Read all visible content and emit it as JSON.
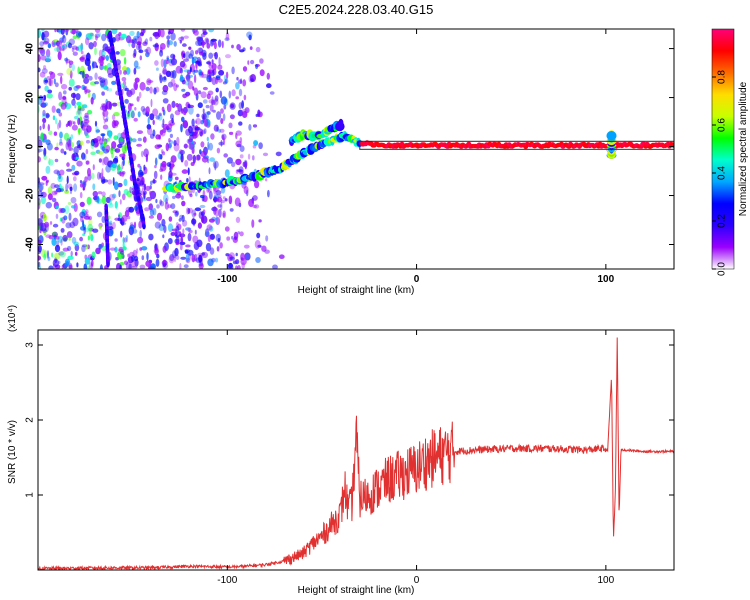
{
  "title": "C2E5.2024.228.03.40.G15",
  "colorbar": {
    "label": "Normalized spectral amplitude",
    "range": [
      0,
      1
    ],
    "ticks": [
      "0.0",
      "0.2",
      "0.4",
      "0.6",
      "0.8"
    ],
    "tick_values": [
      0.0,
      0.2,
      0.4,
      0.6,
      0.8
    ],
    "stops": [
      "#ffffff",
      "#9a00ff",
      "#2a00ff",
      "#0000ff",
      "#00a8ff",
      "#00ffcc",
      "#00ff00",
      "#c8ff00",
      "#ffdd00",
      "#ff6a00",
      "#ff0000",
      "#ff0078"
    ]
  },
  "chart_data": [
    {
      "type": "heatmap",
      "xlabel": "Height of straight line (km)",
      "ylabel": "Frequency (Hz)",
      "xlim": [
        -200,
        136
      ],
      "ylim": [
        -50,
        48
      ],
      "xticks": [
        "-100",
        "0",
        "100"
      ],
      "xtick_values": [
        -100,
        0,
        100
      ],
      "yticks": [
        "40",
        "20",
        "0",
        "-20",
        "-40"
      ],
      "ytick_values": [
        40,
        20,
        0,
        -20,
        -40
      ],
      "noise_region_x": [
        -200,
        -70
      ],
      "features": [
        {
          "name": "main-band",
          "points": [
            [
              -132,
              -17
            ],
            [
              -115,
              -16
            ],
            [
              -100,
              -15
            ],
            [
              -85,
              -12
            ],
            [
              -72,
              -9
            ],
            [
              -60,
              -3
            ],
            [
              -48,
              2
            ],
            [
              -38,
              4
            ],
            [
              -30,
              1.5
            ],
            [
              -20,
              0.5
            ],
            [
              -10,
              0.5
            ],
            [
              0,
              0.5
            ],
            [
              10,
              0.5
            ],
            [
              30,
              0.5
            ],
            [
              60,
              0.5
            ],
            [
              90,
              0.5
            ],
            [
              100,
              0.5
            ],
            [
              110,
              0.5
            ],
            [
              136,
              0.5
            ]
          ]
        },
        {
          "name": "upper-branch",
          "points": [
            [
              -66,
              2
            ],
            [
              -60,
              5
            ],
            [
              -52,
              4
            ],
            [
              -45,
              7
            ],
            [
              -40,
              9
            ]
          ]
        },
        {
          "name": "diagonal-streak",
          "points": [
            [
              -162,
              46
            ],
            [
              -155,
              15
            ],
            [
              -149,
              -14
            ],
            [
              -144,
              -32
            ]
          ]
        },
        {
          "name": "vertical-streak",
          "points": [
            [
              -164,
              -25
            ],
            [
              -163,
              -48
            ]
          ]
        },
        {
          "name": "spike-100",
          "points": [
            [
              103,
              -4
            ],
            [
              103,
              5
            ]
          ]
        }
      ]
    },
    {
      "type": "line",
      "xlabel": "Height of straight line (km)",
      "ylabel": "SNR (10 * v/v)",
      "y_multiplier": "(x10⁴)",
      "xlim": [
        -200,
        136
      ],
      "ylim": [
        0,
        3.2
      ],
      "xticks": [
        "-100",
        "0",
        "100"
      ],
      "xtick_values": [
        -100,
        0,
        100
      ],
      "yticks": [
        "1",
        "2",
        "3"
      ],
      "ytick_values": [
        1,
        2,
        3
      ],
      "color": "#e03030",
      "series": [
        {
          "x": [
            -200,
            -160,
            -140,
            -120,
            -100,
            -90,
            -80,
            -70,
            -60,
            -55,
            -50,
            -45,
            -40,
            -38,
            -36,
            -34,
            -32,
            -30,
            -25,
            -20,
            -15,
            -10,
            -5,
            0,
            5,
            10,
            15,
            20,
            30,
            50,
            70,
            90,
            98,
            101,
            103,
            104,
            105,
            106,
            107,
            108,
            110,
            120,
            136
          ],
          "y": [
            0.02,
            0.03,
            0.03,
            0.05,
            0.04,
            0.05,
            0.07,
            0.12,
            0.22,
            0.35,
            0.45,
            0.6,
            0.75,
            1.1,
            0.8,
            0.9,
            1.8,
            0.95,
            1.0,
            1.1,
            1.2,
            1.25,
            1.3,
            1.35,
            1.45,
            1.5,
            1.55,
            1.58,
            1.6,
            1.62,
            1.62,
            1.6,
            1.62,
            1.6,
            2.6,
            0.4,
            1.0,
            3.1,
            0.7,
            1.6,
            1.6,
            1.58,
            1.58
          ]
        }
      ]
    }
  ]
}
